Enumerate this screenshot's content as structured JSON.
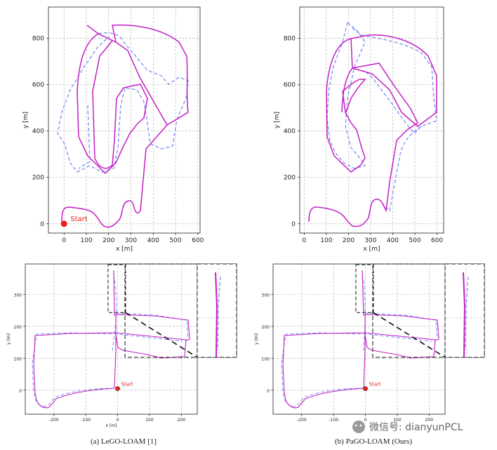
{
  "chart_data": [
    {
      "type": "line",
      "panel": "top-left",
      "xlabel": "x [m]",
      "ylabel": "y [m]",
      "xlim": [
        -70,
        610
      ],
      "ylim": [
        -40,
        935
      ],
      "xticks": [
        0,
        100,
        200,
        300,
        400,
        500,
        600
      ],
      "yticks": [
        0,
        200,
        400,
        600,
        800
      ],
      "grid": true,
      "series": [
        {
          "color": "#c21fc6",
          "style": "solid",
          "x": [
            125,
            165,
            210,
            255,
            300,
            345,
            365,
            355,
            320,
            300,
            280,
            250,
            235,
            230,
            225,
            215,
            210,
            205,
            200,
            195,
            190,
            200,
            215,
            235,
            260,
            290,
            305,
            295,
            300,
            330,
            370,
            400,
            430,
            470,
            510,
            550,
            570,
            555,
            540,
            510,
            480,
            460,
            440,
            400,
            360,
            330,
            300,
            280,
            260,
            240,
            210,
            190,
            170,
            150,
            120,
            100,
            80,
            60,
            40,
            20,
            0,
            -10,
            -10,
            -5,
            10,
            40,
            80,
            110,
            120,
            130,
            145,
            160,
            175,
            190,
            200,
            215,
            230,
            250,
            270,
            290,
            300,
            310,
            320,
            330,
            340,
            350,
            360,
            370,
            385,
            400,
            415,
            430,
            440,
            445,
            460,
            470,
            480,
            490,
            500,
            520,
            540,
            560,
            575,
            570,
            560,
            540,
            520,
            500,
            480,
            460,
            440,
            420,
            400,
            380,
            360,
            340,
            320,
            300,
            280,
            260,
            240,
            220,
            200,
            180,
            160,
            140,
            125
          ],
          "y": [
            918,
            895,
            870,
            850,
            810,
            760,
            700,
            690,
            680,
            650,
            600,
            500,
            430,
            380,
            340,
            310,
            290,
            280,
            270,
            250,
            230,
            220,
            225,
            240,
            260,
            300,
            350,
            420,
            520,
            600,
            640,
            660,
            640,
            600,
            560,
            500,
            450,
            420,
            400,
            380,
            370,
            360,
            350,
            340,
            330,
            320,
            300,
            280,
            260,
            250,
            240,
            220,
            200,
            180,
            160,
            140,
            120,
            100,
            80,
            60,
            40,
            20,
            0,
            -10,
            -15,
            -20,
            -18,
            -10,
            5,
            30,
            60,
            80,
            75,
            60,
            40,
            20,
            10,
            10,
            20,
            40,
            70,
            80,
            60,
            40,
            30,
            30,
            40,
            60,
            80,
            100,
            140,
            200,
            300,
            360,
            420,
            470,
            480,
            490,
            500,
            520,
            560,
            620,
            700,
            800,
            860,
            880,
            890,
            900,
            905,
            910,
            915,
            920,
            922,
            920,
            915,
            910,
            905,
            900,
            895,
            885,
            880,
            870,
            860,
            845,
            830,
            820,
            918
          ]
        },
        {
          "color": "#7b8ff0",
          "style": "dashed",
          "x": [
            125,
            150,
            180,
            200,
            230,
            260,
            290,
            320,
            350,
            380,
            400,
            420,
            430,
            440,
            420,
            400,
            380,
            360,
            340,
            330,
            320,
            310,
            300,
            280,
            260,
            240,
            220,
            200,
            180,
            160,
            140,
            120,
            100,
            80,
            60,
            40,
            20,
            0,
            -20,
            -30,
            -25,
            -10,
            10,
            30,
            50,
            70,
            90,
            110,
            125
          ],
          "y": [
            840,
            850,
            860,
            855,
            840,
            820,
            800,
            780,
            760,
            740,
            700,
            650,
            600,
            560,
            520,
            500,
            480,
            470,
            460,
            450,
            440,
            420,
            400,
            380,
            360,
            340,
            320,
            300,
            280,
            260,
            250,
            245,
            240,
            250,
            270,
            300,
            340,
            380,
            420,
            470,
            520,
            570,
            620,
            660,
            700,
            740,
            770,
            800,
            840
          ]
        }
      ],
      "annotations": [
        {
          "text": "Start",
          "x": 0,
          "y": 0
        }
      ]
    },
    {
      "type": "line",
      "panel": "top-right",
      "xlabel": "x [m]",
      "ylabel": "y [m]",
      "xlim": [
        -20,
        630
      ],
      "ylim": [
        -40,
        935
      ],
      "xticks": [
        0,
        100,
        200,
        300,
        400,
        500,
        600
      ],
      "yticks": [
        0,
        200,
        400,
        600,
        800
      ],
      "grid": true
    },
    {
      "type": "line",
      "panel": "bottom-left",
      "xlabel": "x [m]",
      "ylabel": "y [m]",
      "xlim": [
        -290,
        250
      ],
      "ylim": [
        -75,
        395
      ],
      "xticks": [
        -200,
        -100,
        0,
        100,
        200
      ],
      "yticks": [
        0,
        100,
        200,
        300
      ],
      "grid": true,
      "annotations": [
        {
          "text": "Start",
          "x": 0,
          "y": 5
        }
      ]
    },
    {
      "type": "line",
      "panel": "bottom-right",
      "xlabel": "x [m]",
      "ylabel": "y [m]",
      "xlim": [
        -290,
        250
      ],
      "ylim": [
        -75,
        395
      ],
      "xticks": [
        -200,
        -100,
        0,
        100,
        200
      ],
      "yticks": [
        0,
        100,
        200,
        300
      ],
      "grid": true,
      "annotations": [
        {
          "text": "Start",
          "x": 0,
          "y": 5
        }
      ]
    }
  ],
  "captions": {
    "left": "(a) LeGO-LOAM [1]",
    "right": "(b) PaGO-LOAM (Ours)"
  },
  "watermark": "微信号: dianyunPCL",
  "colors": {
    "estimate": "#c21fc6",
    "ground_truth": "#7b8ff0",
    "start": "#e8201c"
  }
}
